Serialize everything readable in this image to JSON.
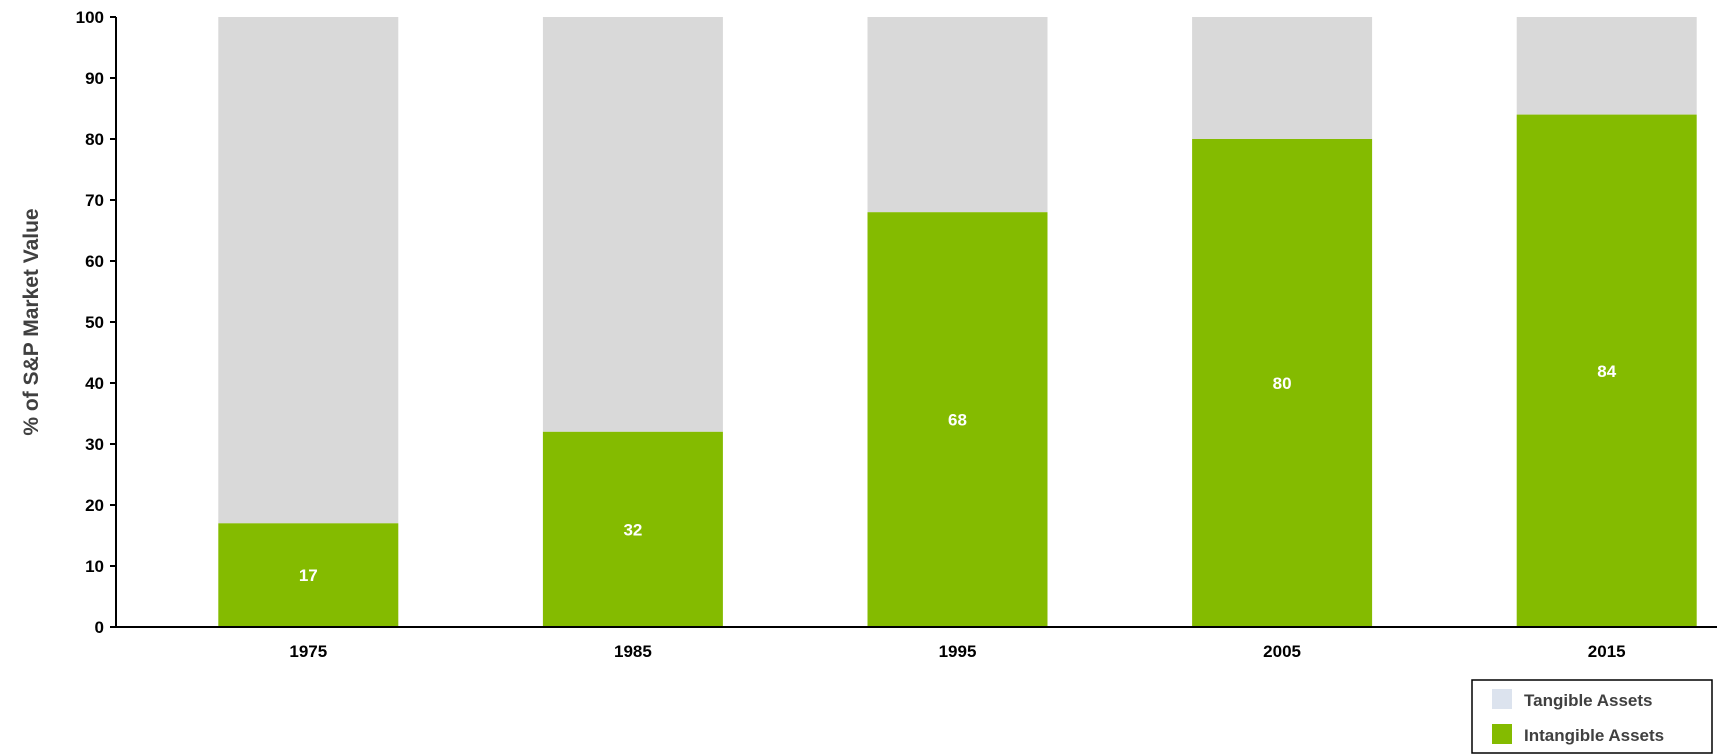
{
  "chart_data": {
    "type": "bar",
    "stacked": true,
    "categories": [
      "1975",
      "1985",
      "1995",
      "2005",
      "2015"
    ],
    "series": [
      {
        "name": "Intangible Assets",
        "values": [
          17,
          32,
          68,
          80,
          84
        ],
        "color": "#84BB00",
        "data_labels": [
          "17",
          "32",
          "68",
          "80",
          "84"
        ]
      },
      {
        "name": "Tangible Assets",
        "values": [
          83,
          68,
          32,
          20,
          16
        ],
        "color": "#D9D9D9",
        "legend_color": "#DCE3EE"
      }
    ],
    "title": "",
    "xlabel": "",
    "ylabel": "% of S&P Market Value",
    "ylim": [
      0,
      100
    ],
    "yticks": [
      "0",
      "10",
      "20",
      "30",
      "40",
      "50",
      "60",
      "70",
      "80",
      "90",
      "100"
    ],
    "grid": false,
    "legend": {
      "placement": "bottom-right",
      "entries": [
        "Tangible Assets",
        "Intangible Assets"
      ]
    }
  }
}
